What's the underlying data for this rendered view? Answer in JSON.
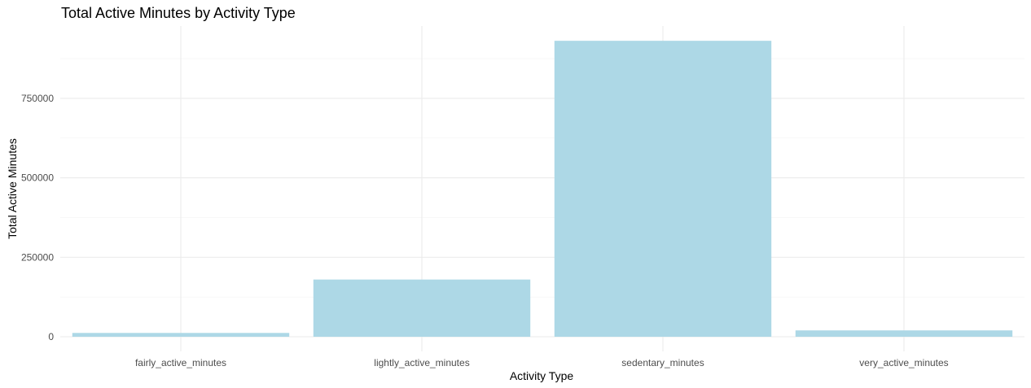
{
  "chart_data": {
    "type": "bar",
    "title": "Total Active Minutes by Activity Type",
    "xlabel": "Activity Type",
    "ylabel": "Total Active Minutes",
    "categories": [
      "fairly_active_minutes",
      "lightly_active_minutes",
      "sedentary_minutes",
      "very_active_minutes"
    ],
    "values": [
      12000,
      180000,
      931000,
      20000
    ],
    "ylim": [
      0,
      950000
    ],
    "yticks": [
      0,
      250000,
      500000,
      750000
    ],
    "ytick_labels": [
      "0",
      "250000",
      "500000",
      "750000"
    ],
    "grid": true,
    "bar_color": "#add8e6"
  }
}
